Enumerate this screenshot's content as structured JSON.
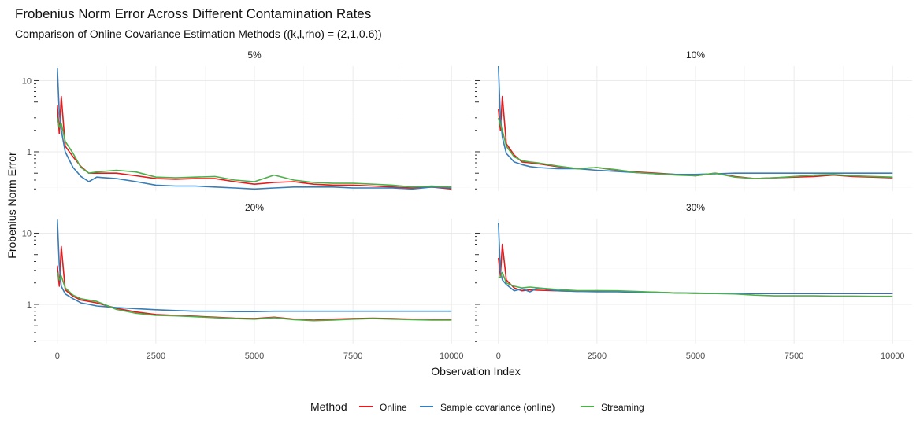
{
  "chart_data": {
    "type": "line",
    "title": "Frobenius Norm Error Across Different Contamination Rates",
    "subtitle": "Comparison of Online Covariance Estimation Methods ((k,l,rho) = (2,1,0.6))",
    "xlabel": "Observation Index",
    "ylabel": "Frobenius Norm Error",
    "y_scale": "log10",
    "xlim": [
      0,
      10000
    ],
    "ylim": [
      0.28,
      16
    ],
    "x_ticks": [
      0,
      2500,
      5000,
      7500,
      10000
    ],
    "x_tick_labels": [
      "0",
      "2500",
      "5000",
      "7500",
      "10000"
    ],
    "y_ticks": [
      1,
      10
    ],
    "y_tick_labels": [
      "1",
      "10"
    ],
    "grid": true,
    "legend": {
      "title": "Method",
      "position": "bottom",
      "entries": [
        "Online",
        "Sample covariance (online)",
        "Streaming"
      ]
    },
    "colors": {
      "Online": "#e41a1c",
      "Sample covariance (online)": "#377eb8",
      "Streaming": "#4daf4a"
    },
    "facets": [
      {
        "label": "5%",
        "series": [
          {
            "name": "Online",
            "x": [
              0,
              50,
              100,
              200,
              400,
              600,
              800,
              1000,
              1500,
              2000,
              2500,
              3000,
              3500,
              4000,
              4500,
              5000,
              5500,
              6000,
              6500,
              7000,
              7500,
              8000,
              8500,
              9000,
              9500,
              10000
            ],
            "y": [
              4.5,
              1.8,
              6.0,
              1.2,
              0.85,
              0.62,
              0.5,
              0.5,
              0.5,
              0.46,
              0.42,
              0.41,
              0.42,
              0.42,
              0.38,
              0.35,
              0.37,
              0.38,
              0.35,
              0.34,
              0.34,
              0.33,
              0.32,
              0.31,
              0.32,
              0.3
            ]
          },
          {
            "name": "Sample covariance (online)",
            "x": [
              0,
              50,
              100,
              200,
              400,
              600,
              800,
              1000,
              1500,
              2000,
              2500,
              3000,
              3500,
              4000,
              4500,
              5000,
              5500,
              6000,
              6500,
              7000,
              7500,
              8000,
              8500,
              9000,
              9500,
              10000
            ],
            "y": [
              15.0,
              3.5,
              2.0,
              1.0,
              0.6,
              0.45,
              0.38,
              0.44,
              0.42,
              0.38,
              0.34,
              0.33,
              0.33,
              0.32,
              0.31,
              0.3,
              0.31,
              0.32,
              0.32,
              0.32,
              0.31,
              0.31,
              0.31,
              0.3,
              0.32,
              0.31
            ]
          },
          {
            "name": "Streaming",
            "x": [
              0,
              50,
              100,
              200,
              400,
              600,
              800,
              1000,
              1500,
              2000,
              2500,
              3000,
              3500,
              4000,
              4500,
              5000,
              5500,
              6000,
              6500,
              7000,
              7500,
              8000,
              8500,
              9000,
              9500,
              10000
            ],
            "y": [
              3.0,
              2.2,
              2.5,
              1.4,
              0.95,
              0.6,
              0.5,
              0.52,
              0.55,
              0.52,
              0.44,
              0.43,
              0.44,
              0.45,
              0.4,
              0.38,
              0.47,
              0.4,
              0.37,
              0.36,
              0.36,
              0.35,
              0.34,
              0.32,
              0.33,
              0.32
            ]
          }
        ]
      },
      {
        "label": "10%",
        "series": [
          {
            "name": "Online",
            "x": [
              0,
              50,
              100,
              200,
              400,
              600,
              800,
              1000,
              1500,
              2000,
              2500,
              3000,
              3500,
              4000,
              4500,
              5000,
              5500,
              6000,
              6500,
              7000,
              7500,
              8000,
              8500,
              9000,
              9500,
              10000
            ],
            "y": [
              4.0,
              2.0,
              6.0,
              1.3,
              0.9,
              0.72,
              0.7,
              0.68,
              0.62,
              0.58,
              0.6,
              0.55,
              0.52,
              0.5,
              0.48,
              0.46,
              0.5,
              0.45,
              0.42,
              0.43,
              0.44,
              0.45,
              0.47,
              0.45,
              0.44,
              0.43
            ]
          },
          {
            "name": "Sample covariance (online)",
            "x": [
              0,
              50,
              100,
              200,
              400,
              600,
              800,
              1000,
              1500,
              2000,
              2500,
              3000,
              3500,
              4000,
              4500,
              5000,
              5500,
              6000,
              6500,
              7000,
              7500,
              8000,
              8500,
              9000,
              9500,
              10000
            ],
            "y": [
              16.0,
              3.0,
              1.6,
              0.95,
              0.72,
              0.66,
              0.62,
              0.6,
              0.58,
              0.58,
              0.55,
              0.53,
              0.51,
              0.49,
              0.48,
              0.48,
              0.49,
              0.5,
              0.5,
              0.5,
              0.5,
              0.5,
              0.5,
              0.5,
              0.5,
              0.5
            ]
          },
          {
            "name": "Streaming",
            "x": [
              0,
              50,
              100,
              200,
              400,
              600,
              800,
              1000,
              1500,
              2000,
              2500,
              3000,
              3500,
              4000,
              4500,
              5000,
              5500,
              6000,
              6500,
              7000,
              7500,
              8000,
              8500,
              9000,
              9500,
              10000
            ],
            "y": [
              3.0,
              2.4,
              2.0,
              1.2,
              0.85,
              0.75,
              0.72,
              0.7,
              0.63,
              0.58,
              0.6,
              0.56,
              0.51,
              0.49,
              0.47,
              0.46,
              0.5,
              0.44,
              0.42,
              0.43,
              0.45,
              0.47,
              0.48,
              0.46,
              0.45,
              0.44
            ]
          }
        ]
      },
      {
        "label": "20%",
        "series": [
          {
            "name": "Online",
            "x": [
              0,
              50,
              100,
              200,
              400,
              600,
              800,
              1000,
              1500,
              2000,
              2500,
              3000,
              3500,
              4000,
              4500,
              5000,
              5500,
              6000,
              6500,
              7000,
              7500,
              8000,
              8500,
              9000,
              9500,
              10000
            ],
            "y": [
              3.5,
              1.8,
              6.5,
              1.6,
              1.3,
              1.15,
              1.1,
              1.05,
              0.88,
              0.78,
              0.72,
              0.7,
              0.68,
              0.66,
              0.64,
              0.63,
              0.66,
              0.62,
              0.6,
              0.62,
              0.63,
              0.64,
              0.63,
              0.62,
              0.61,
              0.61
            ]
          },
          {
            "name": "Sample covariance (online)",
            "x": [
              0,
              50,
              100,
              200,
              400,
              600,
              800,
              1000,
              1500,
              2000,
              2500,
              3000,
              3500,
              4000,
              4500,
              5000,
              5500,
              6000,
              6500,
              7000,
              7500,
              8000,
              8500,
              9000,
              9500,
              10000
            ],
            "y": [
              15.5,
              3.5,
              1.8,
              1.4,
              1.2,
              1.05,
              1.0,
              0.95,
              0.9,
              0.87,
              0.84,
              0.82,
              0.8,
              0.8,
              0.79,
              0.79,
              0.8,
              0.8,
              0.8,
              0.8,
              0.8,
              0.8,
              0.8,
              0.8,
              0.8,
              0.8
            ]
          },
          {
            "name": "Streaming",
            "x": [
              0,
              50,
              100,
              200,
              400,
              600,
              800,
              1000,
              1500,
              2000,
              2500,
              3000,
              3500,
              4000,
              4500,
              5000,
              5500,
              6000,
              6500,
              7000,
              7500,
              8000,
              8500,
              9000,
              9500,
              10000
            ],
            "y": [
              2.8,
              2.2,
              2.5,
              1.7,
              1.35,
              1.2,
              1.15,
              1.1,
              0.85,
              0.75,
              0.7,
              0.69,
              0.67,
              0.65,
              0.63,
              0.62,
              0.65,
              0.61,
              0.59,
              0.6,
              0.62,
              0.63,
              0.62,
              0.61,
              0.6,
              0.6
            ]
          }
        ]
      },
      {
        "label": "30%",
        "series": [
          {
            "name": "Online",
            "x": [
              0,
              50,
              100,
              200,
              400,
              600,
              800,
              1000,
              1500,
              2000,
              2500,
              3000,
              3500,
              4000,
              4500,
              5000,
              5500,
              6000,
              6500,
              7000,
              7500,
              8000,
              8500,
              9000,
              9500,
              10000
            ],
            "y": [
              4.5,
              2.5,
              7.0,
              2.2,
              1.7,
              1.55,
              1.6,
              1.58,
              1.55,
              1.52,
              1.55,
              1.52,
              1.5,
              1.48,
              1.45,
              1.43,
              1.42,
              1.42,
              1.42,
              1.42,
              1.42,
              1.42,
              1.42,
              1.42,
              1.42,
              1.42
            ]
          },
          {
            "name": "Sample covariance (online)",
            "x": [
              0,
              50,
              100,
              200,
              400,
              600,
              800,
              1000,
              1500,
              2000,
              2500,
              3000,
              3500,
              4000,
              4500,
              5000,
              5500,
              6000,
              6500,
              7000,
              7500,
              8000,
              8500,
              9000,
              9500,
              10000
            ],
            "y": [
              14.0,
              3.0,
              2.2,
              1.9,
              1.55,
              1.65,
              1.5,
              1.7,
              1.55,
              1.52,
              1.5,
              1.5,
              1.48,
              1.46,
              1.45,
              1.44,
              1.43,
              1.43,
              1.43,
              1.43,
              1.43,
              1.43,
              1.43,
              1.43,
              1.43,
              1.43
            ]
          },
          {
            "name": "Streaming",
            "x": [
              0,
              50,
              100,
              200,
              400,
              600,
              800,
              1000,
              1500,
              2000,
              2500,
              3000,
              3500,
              4000,
              4500,
              5000,
              5500,
              6000,
              6500,
              7000,
              7500,
              8000,
              8500,
              9000,
              9500,
              10000
            ],
            "y": [
              2.4,
              2.4,
              2.8,
              2.0,
              1.8,
              1.7,
              1.75,
              1.7,
              1.62,
              1.56,
              1.56,
              1.55,
              1.52,
              1.48,
              1.45,
              1.43,
              1.42,
              1.4,
              1.35,
              1.32,
              1.32,
              1.32,
              1.31,
              1.31,
              1.3,
              1.3
            ]
          }
        ]
      }
    ]
  }
}
